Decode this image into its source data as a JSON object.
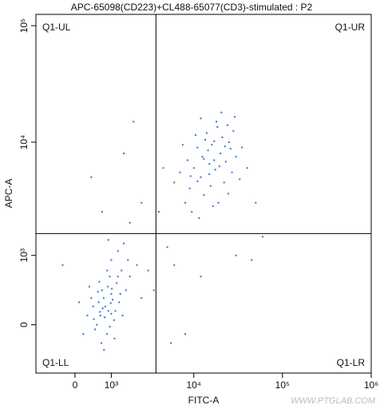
{
  "chart_data": {
    "type": "scatter",
    "title": "APC-65098(CD223)+CL488-65077(CD3)-stimulated : P2",
    "xlabel": "FITC-A",
    "ylabel": "APC-A",
    "xscale": "biexponential",
    "yscale": "biexponential",
    "xlim": [
      -1100,
      1000000
    ],
    "ylim": [
      -600,
      125000
    ],
    "xticks": [
      0,
      {
        "value": 1000,
        "label": "10³"
      },
      {
        "value": 10000,
        "label": "10⁴"
      },
      {
        "value": 100000,
        "label": "10⁵"
      },
      {
        "value": 1000000,
        "label": "10⁶"
      }
    ],
    "yticks": [
      0,
      {
        "value": 1000,
        "label": "10³"
      },
      {
        "value": 10000,
        "label": "10⁴"
      },
      {
        "value": 100000,
        "label": "10⁵"
      }
    ],
    "gate": {
      "x": 3700,
      "y": 1600,
      "quadrants": [
        "Q1-UL",
        "Q1-UR",
        "Q1-LL",
        "Q1-LR"
      ]
    },
    "watermark": "WWW.PTGLAB.COM",
    "series": [
      {
        "color": "#2a78d6",
        "x": [
          800,
          650,
          1000,
          500,
          1200,
          900,
          700,
          1100,
          600,
          1400,
          850,
          300,
          1000,
          750,
          1300,
          450,
          950,
          1600,
          550,
          1150,
          680,
          880,
          1250,
          400,
          1050,
          780,
          1700,
          620,
          950,
          1350,
          200,
          1500,
          720,
          1000,
          580,
          1800,
          860,
          1120,
          470,
          1020,
          2200,
          900,
          350,
          1250,
          760,
          1450,
          640,
          2500,
          100,
          980,
          15000,
          12000,
          20000,
          9000,
          25000,
          17000,
          11000,
          22000,
          14000,
          8000,
          30000,
          18000,
          13000,
          10000,
          27000,
          16000,
          7000,
          21000,
          19000,
          12500,
          35000,
          9500,
          24000,
          15500,
          6000,
          28000,
          13500,
          17500,
          11500,
          23000,
          40000,
          14500,
          8500,
          20500,
          16500,
          26000,
          10500,
          19500,
          12000,
          33000,
          7500,
          22500,
          15000,
          18500,
          9200,
          29000,
          13000,
          24500,
          11000,
          17000,
          3000,
          5000,
          2500,
          400,
          1500,
          6000,
          8000,
          4000,
          2000,
          50000,
          60000,
          3500,
          45000,
          5500,
          700,
          1800,
          30000,
          4500,
          12000,
          -300
        ],
        "y": [
          200,
          100,
          350,
          -50,
          500,
          150,
          400,
          50,
          250,
          700,
          -100,
          100,
          900,
          300,
          250,
          200,
          600,
          400,
          0,
          150,
          -200,
          450,
          1100,
          300,
          280,
          80,
          900,
          520,
          -20,
          350,
          -100,
          1300,
          180,
          120,
          380,
          600,
          700,
          -150,
          60,
          420,
          800,
          1400,
          450,
          600,
          -280,
          100,
          140,
          300,
          250,
          240,
          6500,
          5000,
          8000,
          4000,
          10000,
          7000,
          9000,
          4500,
          12000,
          3000,
          7500,
          15000,
          3500,
          6000,
          5500,
          9500,
          5500,
          11000,
          3000,
          7500,
          9000,
          2500,
          14000,
          4200,
          4500,
          12500,
          10500,
          5800,
          2200,
          6800,
          6000,
          8500,
          7000,
          18000,
          2800,
          8800,
          11500,
          6200,
          16000,
          4800,
          9500,
          9200,
          5300,
          13500,
          5100,
          16500,
          7200,
          3600,
          4600,
          10200,
          700,
          1200,
          3000,
          5000,
          8000,
          800,
          -100,
          2500,
          15000,
          3000,
          1500,
          400,
          900,
          -200,
          2500,
          2000,
          1000,
          6000,
          600,
          800
        ]
      }
    ]
  }
}
